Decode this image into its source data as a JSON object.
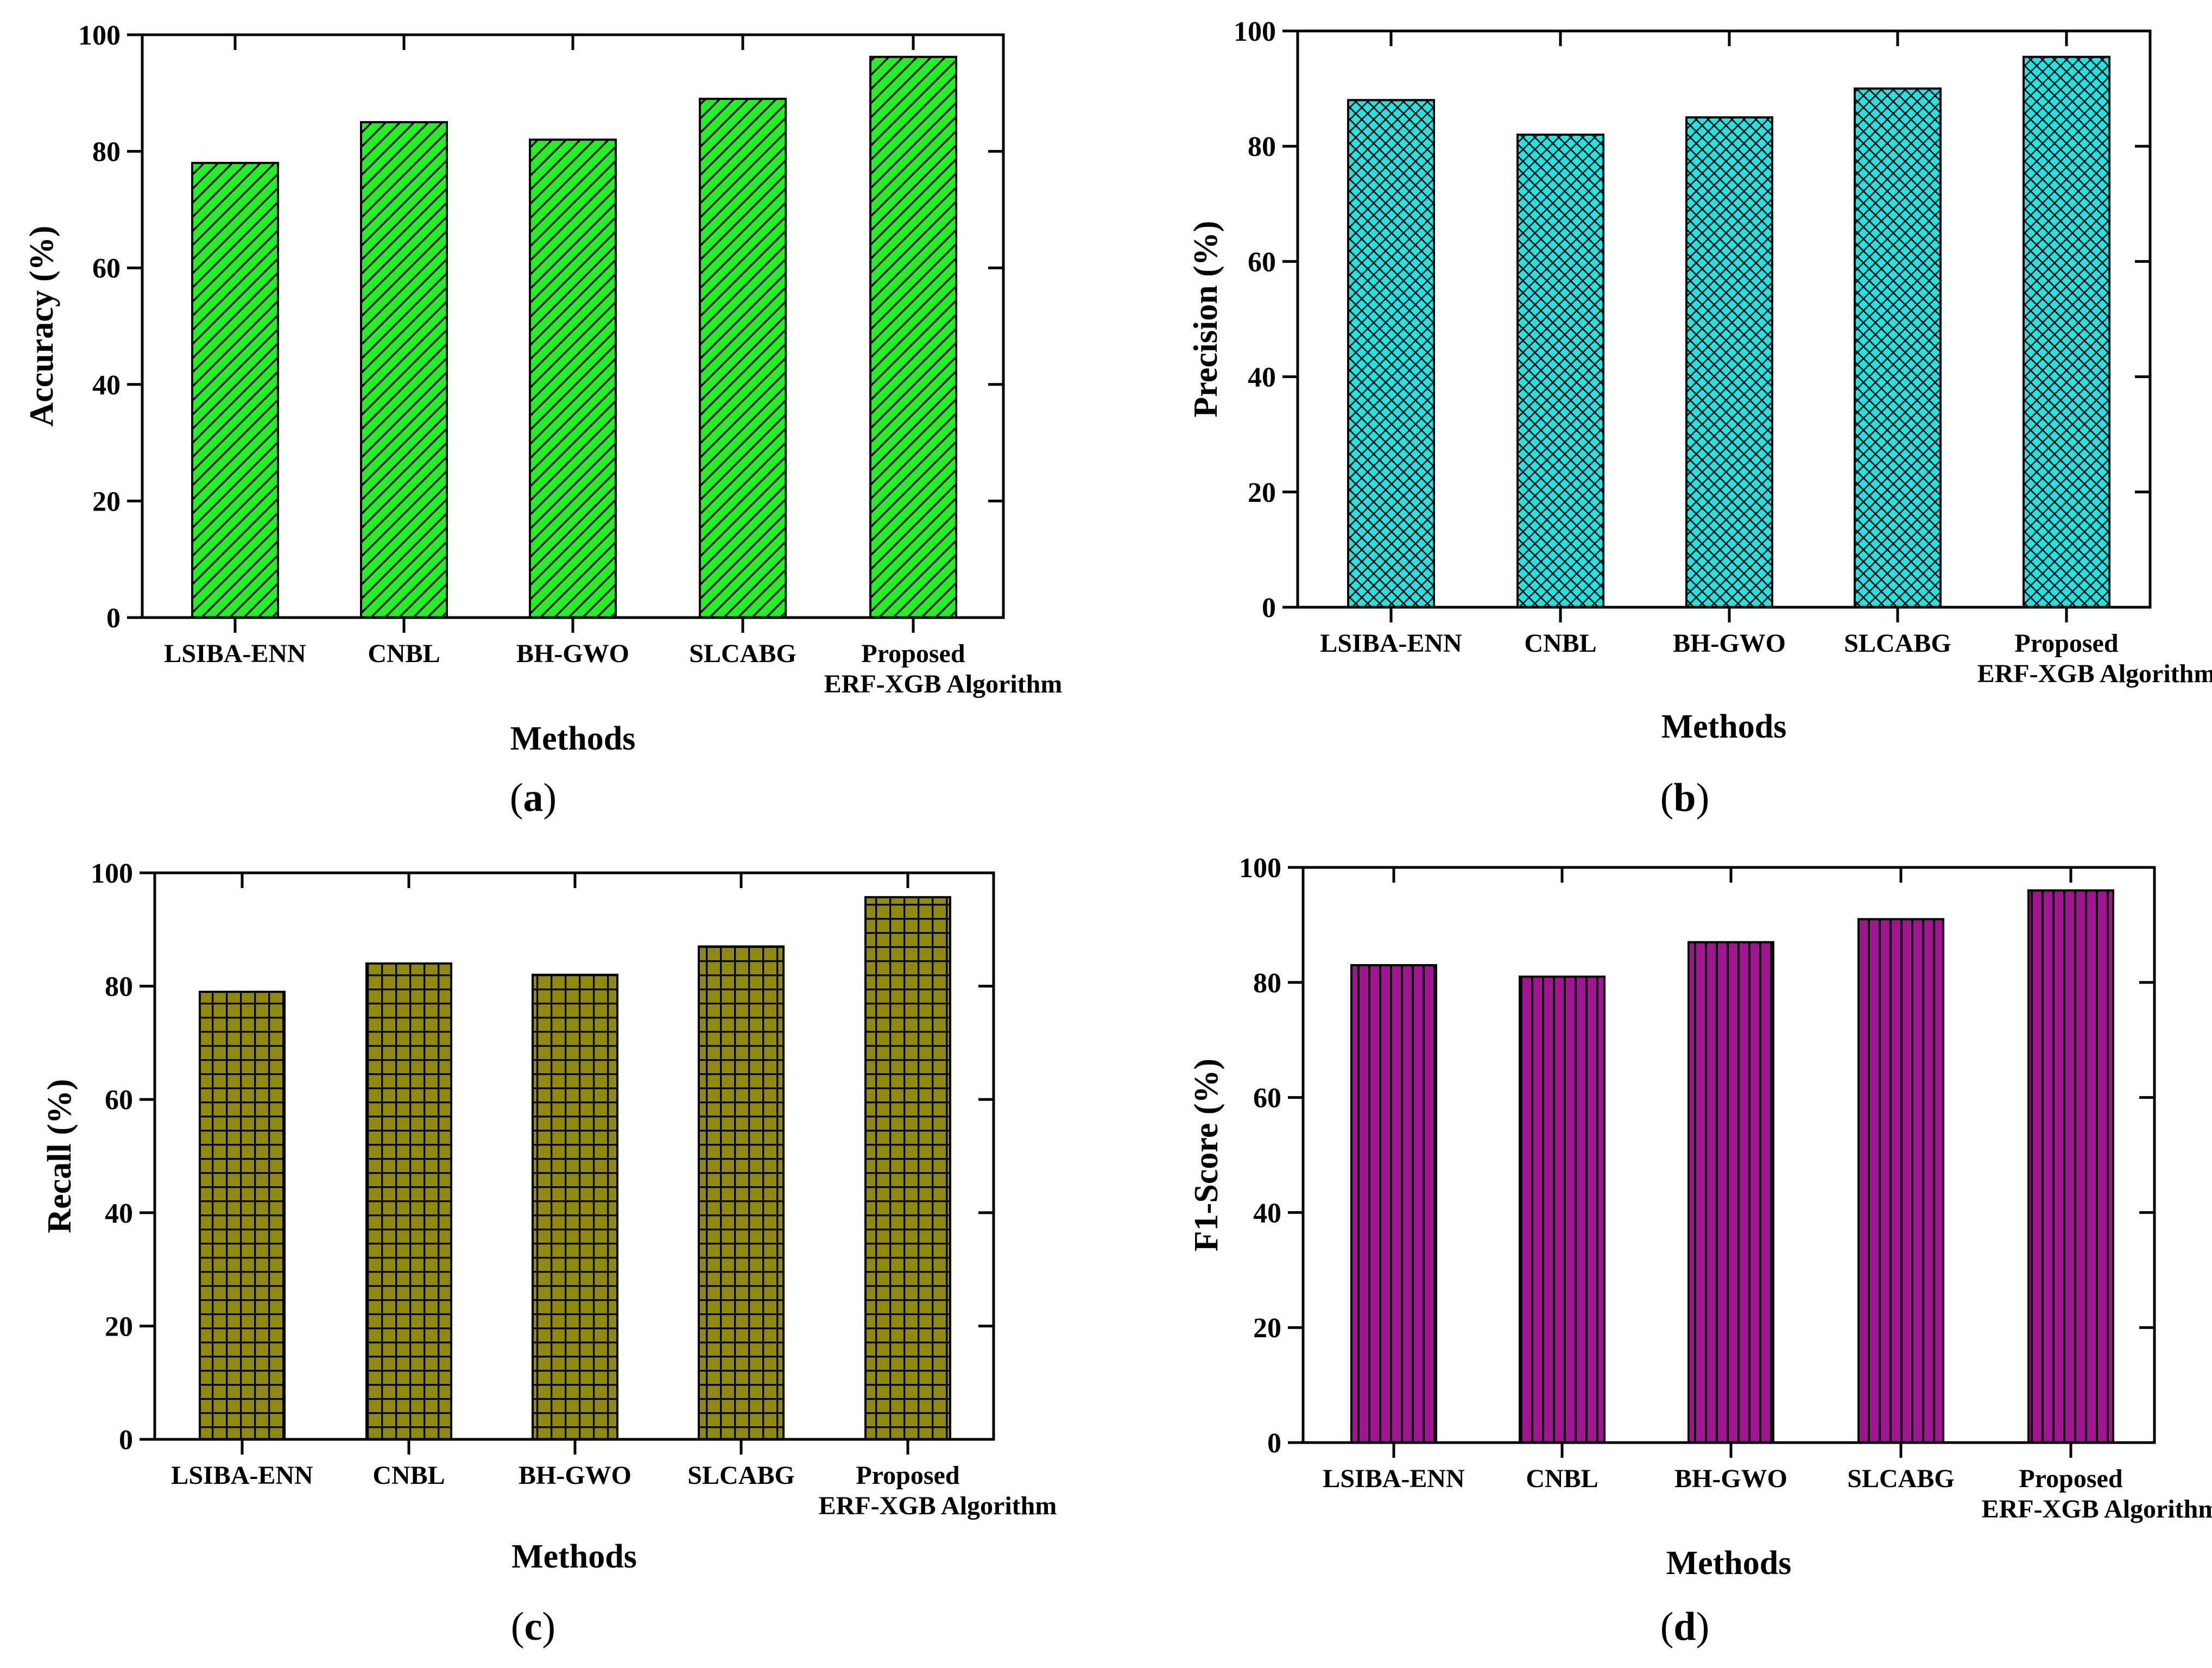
{
  "colors": {
    "accuracy": "#24ee24",
    "precision": "#20e3e3",
    "recall": "#8f8a0c",
    "f1": "#a0148f",
    "axis": "#000000"
  },
  "chart_data": [
    {
      "type": "bar",
      "panel_label": "(a)",
      "pattern": "diagonal-hatch",
      "ylabel": "Accuracy (%)",
      "xlabel": "Methods",
      "categories": [
        "LSIBA-ENN",
        "CNBL",
        "BH-GWO",
        "SLCABG",
        "Proposed\nERF-XGB Algorithm"
      ],
      "values": [
        78,
        85,
        82,
        89,
        96.2
      ],
      "ylim": [
        0,
        100
      ],
      "yticks": [
        0,
        20,
        40,
        60,
        80,
        100
      ],
      "grid": false,
      "color": "#24ee24"
    },
    {
      "type": "bar",
      "panel_label": "(b)",
      "pattern": "cross-hatch",
      "ylabel": "Precision (%)",
      "xlabel": "Methods",
      "categories": [
        "LSIBA-ENN",
        "CNBL",
        "BH-GWO",
        "SLCABG",
        "Proposed\nERF-XGB Algorithm"
      ],
      "values": [
        88,
        82,
        85,
        90,
        95.5
      ],
      "ylim": [
        0,
        100
      ],
      "yticks": [
        0,
        20,
        40,
        60,
        80,
        100
      ],
      "grid": false,
      "color": "#20e3e3"
    },
    {
      "type": "bar",
      "panel_label": "(c)",
      "pattern": "square-grid",
      "ylabel": "Recall (%)",
      "xlabel": "Methods",
      "categories": [
        "LSIBA-ENN",
        "CNBL",
        "BH-GWO",
        "SLCABG",
        "Proposed\nERF-XGB Algorithm"
      ],
      "values": [
        79,
        84,
        82,
        87,
        95.7
      ],
      "ylim": [
        0,
        100
      ],
      "yticks": [
        0,
        20,
        40,
        60,
        80,
        100
      ],
      "grid": false,
      "color": "#8f8a0c"
    },
    {
      "type": "bar",
      "panel_label": "(d)",
      "pattern": "vertical-lines",
      "ylabel": "F1-Score (%)",
      "xlabel": "Methods",
      "categories": [
        "LSIBA-ENN",
        "CNBL",
        "BH-GWO",
        "SLCABG",
        "Proposed\nERF-XGB Algorithm"
      ],
      "values": [
        83,
        81,
        87,
        91,
        96
      ],
      "ylim": [
        0,
        100
      ],
      "yticks": [
        0,
        20,
        40,
        60,
        80,
        100
      ],
      "grid": false,
      "color": "#a0148f"
    }
  ]
}
